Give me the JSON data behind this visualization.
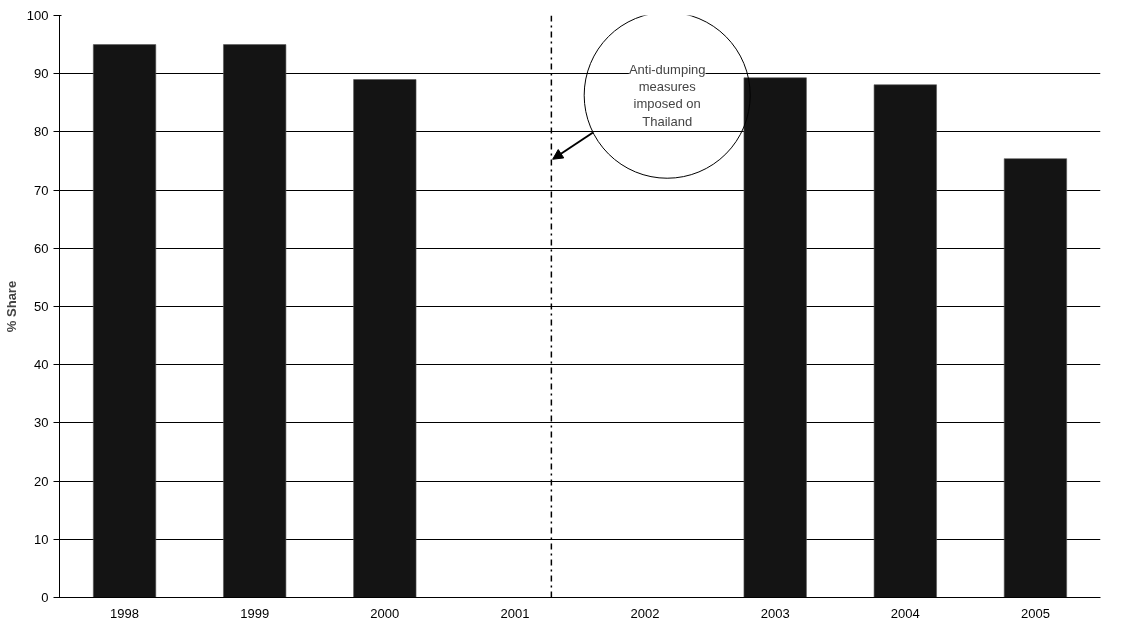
{
  "chart_data": {
    "type": "bar",
    "ylabel": "% Share",
    "categories": [
      "1998",
      "1999",
      "2000",
      "2001",
      "2002",
      "2003",
      "2004",
      "2005"
    ],
    "values": [
      95.0,
      95.0,
      89.0,
      null,
      null,
      89.3,
      88.1,
      75.4
    ],
    "color": "#141414",
    "ylim": [
      0,
      100
    ],
    "yticks": [
      0,
      10,
      20,
      30,
      40,
      50,
      60,
      70,
      80,
      90,
      100
    ],
    "grid": "y",
    "ref_lines": [
      {
        "axis": "x",
        "value": "2001",
        "line_style": "dashdot",
        "color": "#000000"
      }
    ],
    "annotations": [
      "Anti-dumping measures imposed on Thailand"
    ]
  }
}
